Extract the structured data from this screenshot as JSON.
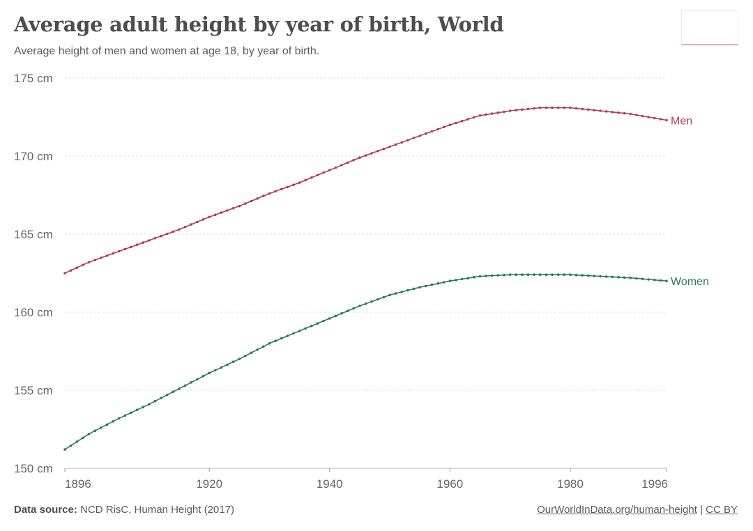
{
  "header": {
    "title": "Average adult height by year of birth, World",
    "subtitle": "Average height of men and women at age 18, by year of birth."
  },
  "footer": {
    "source_label": "Data source:",
    "source_text": "NCD RisC, Human Height (2017)",
    "link_text": "OurWorldInData.org/human-height",
    "separator": "|",
    "license_text": "CC BY"
  },
  "chart_data": {
    "type": "line",
    "title": "Average adult height by year of birth, World",
    "xlabel": "",
    "ylabel": "",
    "xlim": [
      1896,
      1996
    ],
    "ylim": [
      150,
      175
    ],
    "yticks": [
      150,
      155,
      160,
      165,
      170,
      175
    ],
    "ytick_labels": [
      "150 cm",
      "155 cm",
      "160 cm",
      "165 cm",
      "170 cm",
      "175 cm"
    ],
    "xticks": [
      1896,
      1920,
      1940,
      1960,
      1980,
      1996
    ],
    "xtick_labels": [
      "1896",
      "1920",
      "1940",
      "1960",
      "1980",
      "1996"
    ],
    "grid": true,
    "series": [
      {
        "name": "Men",
        "color": "#b13e55",
        "x": [
          1896,
          1900,
          1905,
          1910,
          1915,
          1920,
          1925,
          1930,
          1935,
          1940,
          1945,
          1950,
          1955,
          1960,
          1965,
          1970,
          1975,
          1980,
          1985,
          1990,
          1996
        ],
        "values": [
          162.5,
          163.2,
          163.9,
          164.6,
          165.3,
          166.1,
          166.8,
          167.6,
          168.3,
          169.1,
          169.9,
          170.6,
          171.3,
          172.0,
          172.6,
          172.9,
          173.1,
          173.1,
          172.9,
          172.7,
          172.3
        ]
      },
      {
        "name": "Women",
        "color": "#2a7a5c",
        "x": [
          1896,
          1900,
          1905,
          1910,
          1915,
          1920,
          1925,
          1930,
          1935,
          1940,
          1945,
          1950,
          1955,
          1960,
          1965,
          1970,
          1975,
          1980,
          1985,
          1990,
          1996
        ],
        "values": [
          151.2,
          152.2,
          153.2,
          154.1,
          155.1,
          156.1,
          157.0,
          158.0,
          158.8,
          159.6,
          160.4,
          161.1,
          161.6,
          162.0,
          162.3,
          162.4,
          162.4,
          162.4,
          162.3,
          162.2,
          162.0
        ]
      }
    ]
  }
}
